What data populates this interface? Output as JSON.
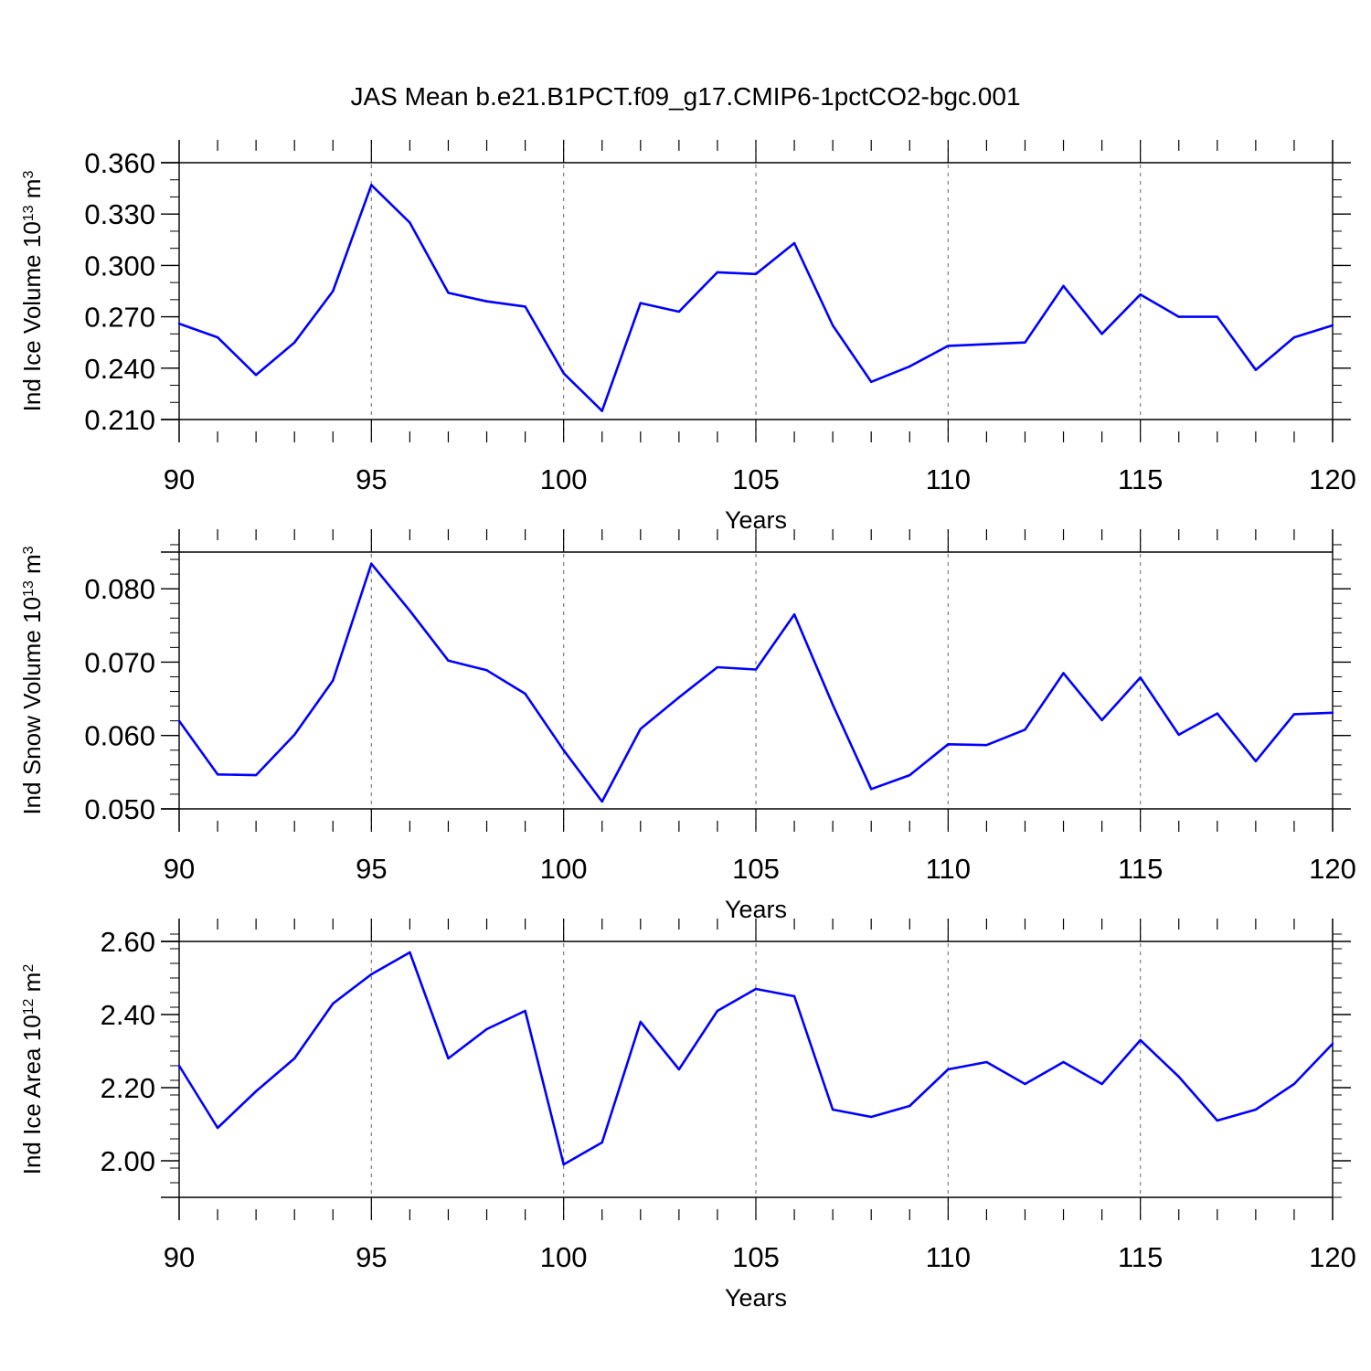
{
  "title": "JAS Mean b.e21.B1PCT.f09_g17.CMIP6-1pctCO2-bgc.001",
  "colors": {
    "line": "#0000ff",
    "axis": "#000000",
    "grid": "#808080",
    "background": "#ffffff"
  },
  "chart_data": [
    {
      "type": "line",
      "ylabel": "Ind Ice Volume 10",
      "ylabel_exp": "13",
      "ylabel_unit": " m",
      "ylabel_unit_exp": "3",
      "xlabel": "Years",
      "xlim": [
        90,
        120
      ],
      "ylim": [
        0.21,
        0.36
      ],
      "ytick_values": [
        0.21,
        0.24,
        0.27,
        0.3,
        0.33,
        0.36
      ],
      "yticks": [
        "0.210",
        "0.240",
        "0.270",
        "0.300",
        "0.330",
        "0.360"
      ],
      "ytick_minor_step": 0.01,
      "xtick_values": [
        90,
        95,
        100,
        105,
        110,
        115,
        120
      ],
      "xticks": [
        "90",
        "95",
        "100",
        "105",
        "110",
        "115",
        "120"
      ],
      "grid": "vertical-dashed",
      "series": [
        {
          "name": "Ind Ice Volume",
          "x": [
            90,
            91,
            92,
            93,
            94,
            95,
            96,
            97,
            98,
            99,
            100,
            101,
            102,
            103,
            104,
            105,
            106,
            107,
            108,
            109,
            110,
            111,
            112,
            113,
            114,
            115,
            116,
            117,
            118,
            119,
            120
          ],
          "values": [
            0.266,
            0.258,
            0.236,
            0.255,
            0.285,
            0.347,
            0.325,
            0.284,
            0.279,
            0.276,
            0.237,
            0.215,
            0.278,
            0.273,
            0.296,
            0.295,
            0.313,
            0.265,
            0.232,
            0.241,
            0.253,
            0.254,
            0.255,
            0.288,
            0.26,
            0.283,
            0.27,
            0.27,
            0.239,
            0.258,
            0.265
          ]
        }
      ]
    },
    {
      "type": "line",
      "ylabel": "Ind Snow Volume 10",
      "ylabel_exp": "13",
      "ylabel_unit": " m",
      "ylabel_unit_exp": "3",
      "xlabel": "Years",
      "xlim": [
        90,
        120
      ],
      "ylim": [
        0.05,
        0.085
      ],
      "ytick_values": [
        0.05,
        0.06,
        0.07,
        0.08
      ],
      "yticks": [
        "0.050",
        "0.060",
        "0.070",
        "0.080"
      ],
      "ytick_minor_step": 0.002,
      "xtick_values": [
        90,
        95,
        100,
        105,
        110,
        115,
        120
      ],
      "xticks": [
        "90",
        "95",
        "100",
        "105",
        "110",
        "115",
        "120"
      ],
      "grid": "vertical-dashed",
      "series": [
        {
          "name": "Ind Snow Volume",
          "x": [
            90,
            91,
            92,
            93,
            94,
            95,
            96,
            97,
            98,
            99,
            100,
            101,
            102,
            103,
            104,
            105,
            106,
            107,
            108,
            109,
            110,
            111,
            112,
            113,
            114,
            115,
            116,
            117,
            118,
            119,
            120
          ],
          "values": [
            0.062,
            0.0547,
            0.0546,
            0.0601,
            0.0675,
            0.0834,
            0.077,
            0.0702,
            0.0689,
            0.0657,
            0.058,
            0.051,
            0.0609,
            0.0652,
            0.0693,
            0.069,
            0.0765,
            0.0642,
            0.0527,
            0.0546,
            0.0588,
            0.0587,
            0.0608,
            0.0685,
            0.0621,
            0.0679,
            0.0601,
            0.063,
            0.0565,
            0.0629,
            0.0631
          ]
        }
      ]
    },
    {
      "type": "line",
      "ylabel": "Ind Ice Area 10",
      "ylabel_exp": "12",
      "ylabel_unit": " m",
      "ylabel_unit_exp": "2",
      "xlabel": "Years",
      "xlim": [
        90,
        120
      ],
      "ylim": [
        1.9,
        2.6
      ],
      "ytick_values": [
        2.0,
        2.2,
        2.4,
        2.6
      ],
      "yticks": [
        "2.00",
        "2.20",
        "2.40",
        "2.60"
      ],
      "ytick_minor_step": 0.04,
      "xtick_values": [
        90,
        95,
        100,
        105,
        110,
        115,
        120
      ],
      "xticks": [
        "90",
        "95",
        "100",
        "105",
        "110",
        "115",
        "120"
      ],
      "grid": "vertical-dashed",
      "series": [
        {
          "name": "Ind Ice Area",
          "x": [
            90,
            91,
            92,
            93,
            94,
            95,
            96,
            97,
            98,
            99,
            100,
            101,
            102,
            103,
            104,
            105,
            106,
            107,
            108,
            109,
            110,
            111,
            112,
            113,
            114,
            115,
            116,
            117,
            118,
            119,
            120
          ],
          "values": [
            2.26,
            2.09,
            2.19,
            2.28,
            2.43,
            2.51,
            2.57,
            2.28,
            2.36,
            2.41,
            1.99,
            2.05,
            2.38,
            2.25,
            2.41,
            2.47,
            2.45,
            2.14,
            2.12,
            2.15,
            2.25,
            2.27,
            2.21,
            2.27,
            2.21,
            2.33,
            2.23,
            2.11,
            2.14,
            2.21,
            2.32
          ]
        }
      ]
    }
  ]
}
